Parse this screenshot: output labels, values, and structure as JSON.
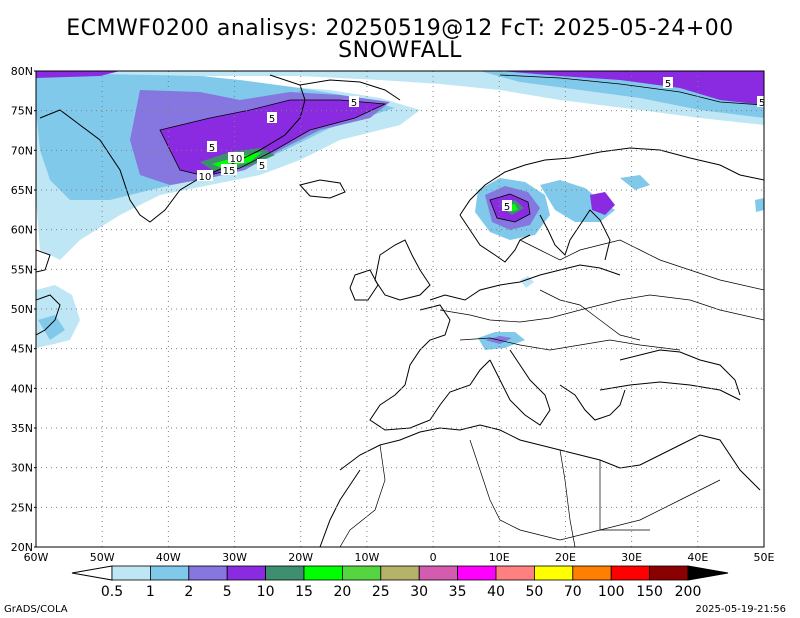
{
  "title_line1": "ECMWF0200 analisys: 20250519@12 FcT: 2025-05-24+00",
  "title_line2": "SNOWFALL",
  "footer_left": "GrADS/COLA",
  "footer_right": "2025-05-19-21:56",
  "lat_labels": [
    "80N",
    "75N",
    "70N",
    "65N",
    "60N",
    "55N",
    "50N",
    "45N",
    "40N",
    "35N",
    "30N",
    "25N",
    "20N"
  ],
  "lon_labels": [
    "60W",
    "50W",
    "40W",
    "30W",
    "20W",
    "10W",
    "0",
    "10E",
    "20E",
    "30E",
    "40E",
    "50E"
  ],
  "colorbar": {
    "levels": [
      "0.5",
      "1",
      "2",
      "5",
      "10",
      "15",
      "20",
      "25",
      "30",
      "35",
      "40",
      "50",
      "70",
      "100",
      "150",
      "200"
    ],
    "colors": [
      "#bfe6f5",
      "#80c9ea",
      "#8576e0",
      "#8a2be2",
      "#3d8f6f",
      "#00ff00",
      "#55d640",
      "#b5b26a",
      "#d45cb0",
      "#ff00ff",
      "#ff8080",
      "#ffff00",
      "#ff8000",
      "#ff0000",
      "#8b0000"
    ]
  },
  "contour_labels": [
    "5",
    "5",
    "5",
    "5",
    "10",
    "10",
    "15",
    "5",
    "5",
    "5"
  ],
  "snow_colors": {
    "light": "#bfe6f5",
    "mid": "#80c9ea",
    "lav": "#8576e0",
    "purple": "#8a2be2",
    "teal": "#3d8f6f",
    "green": "#00ff00"
  }
}
